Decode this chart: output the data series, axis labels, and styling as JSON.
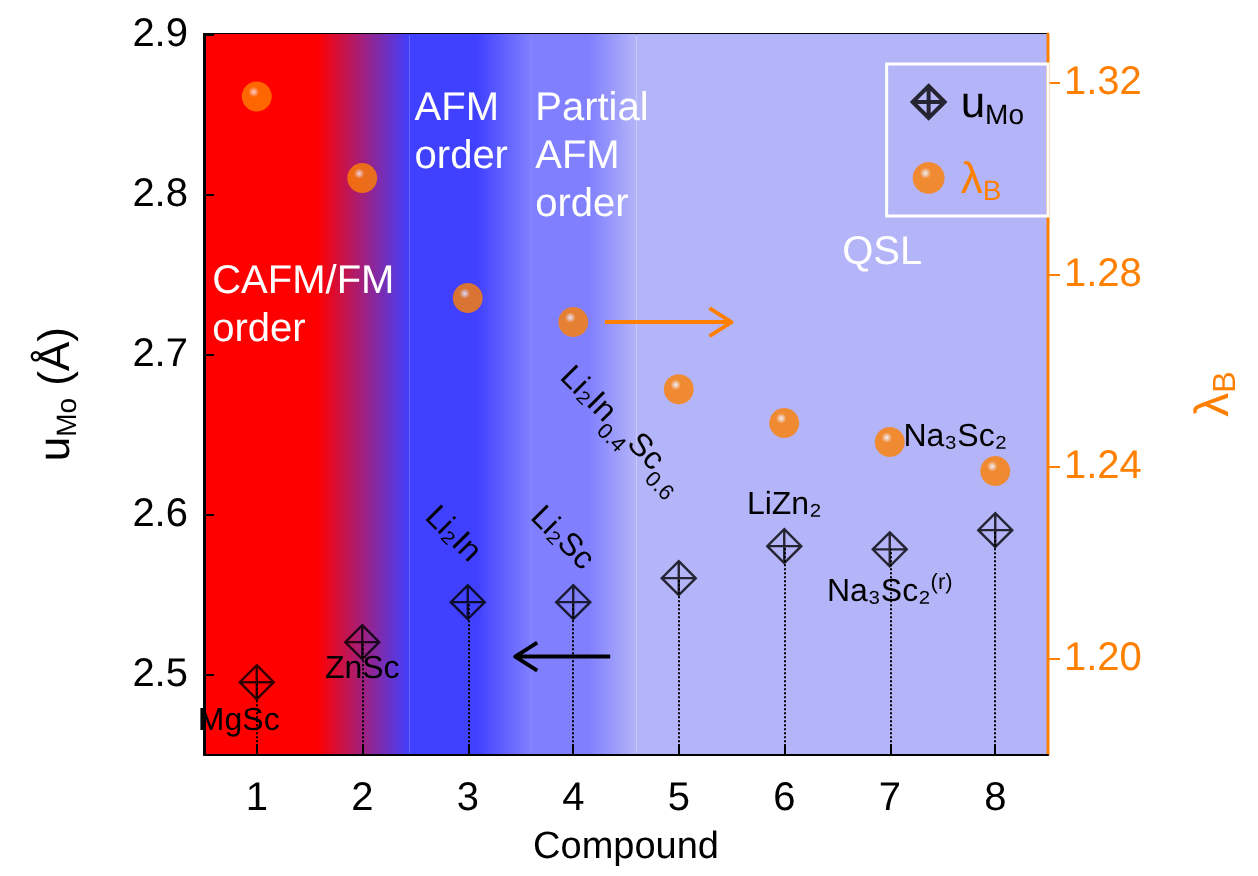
{
  "chart_data": {
    "type": "scatter",
    "xlabel": "Compound",
    "ylabel": "u$_{Mo}$ (Å)",
    "y2label": "λ$_{B}$",
    "x": [
      1,
      2,
      3,
      4,
      5,
      6,
      7,
      8
    ],
    "xlim": [
      0.5,
      8.5
    ],
    "xticks": [
      1,
      2,
      3,
      4,
      5,
      6,
      7,
      8
    ],
    "ylim": [
      2.45,
      2.9
    ],
    "yticks": [
      2.5,
      2.6,
      2.7,
      2.8,
      2.9
    ],
    "y2lim": [
      1.18,
      1.33
    ],
    "y2ticks": [
      {
        "value": 1.2,
        "label": "1.20"
      },
      {
        "value": 1.24,
        "label": "1.24"
      },
      {
        "value": 1.28,
        "label": "1.28"
      },
      {
        "value": 1.32,
        "label": "1.32"
      }
    ],
    "series": [
      {
        "name": "u$_{Mo}$",
        "color": "#000000",
        "marker": "cross",
        "values": [
          2.495,
          2.52,
          2.545,
          2.545,
          2.56,
          2.58,
          2.578,
          2.59
        ],
        "errors": [
          [
            2.45,
            2.495
          ],
          [
            2.45,
            2.52
          ],
          [
            2.45,
            2.545
          ],
          [
            2.45,
            2.545
          ],
          [
            2.45,
            2.56
          ],
          [
            2.45,
            2.58
          ],
          [
            2.45,
            2.578
          ],
          [
            2.45,
            2.59
          ]
        ]
      },
      {
        "name": "λ$_{B}$",
        "color": "#ff8000",
        "marker": "circle",
        "axis": "y2",
        "values": [
          1.317,
          1.3,
          1.275,
          1.27,
          1.256,
          1.249,
          1.245,
          1.239
        ]
      }
    ],
    "bands": [
      {
        "axis": "x",
        "from": 0.5,
        "to": 2.45,
        "label": "CAFM/FM order",
        "color": "#ff0000"
      },
      {
        "axis": "x",
        "from": 2.45,
        "to": 3.6,
        "label": "AFM order",
        "color": "#4040ff"
      },
      {
        "axis": "x",
        "from": 3.6,
        "to": 4.6,
        "label": "Partial AFM order",
        "color": "#8080ff"
      },
      {
        "axis": "x",
        "from": 4.6,
        "to": 8.5,
        "label": "QSL",
        "color": "#b4b4f8"
      }
    ],
    "annotations": [
      {
        "text": "MgSc",
        "x": 1,
        "y": 2.495
      },
      {
        "text": "ZnSc",
        "x": 2,
        "y": 2.52
      },
      {
        "text": "Li₂In",
        "x": 3,
        "y": 2.545
      },
      {
        "text": "Li₂Sc",
        "x": 4,
        "y": 2.545
      },
      {
        "text": "Li₂In$_{0.4}$Sc$_{0.6}$",
        "x": 5,
        "y": 2.56
      },
      {
        "text": "LiZn₂",
        "x": 6,
        "y": 2.58
      },
      {
        "text": "Na₃Sc₂$^{(r)}$",
        "x": 7,
        "y": 2.578
      },
      {
        "text": "Na₃Sc₂",
        "x": 8,
        "y": 2.59
      }
    ],
    "grid": false,
    "legend": "top right"
  }
}
